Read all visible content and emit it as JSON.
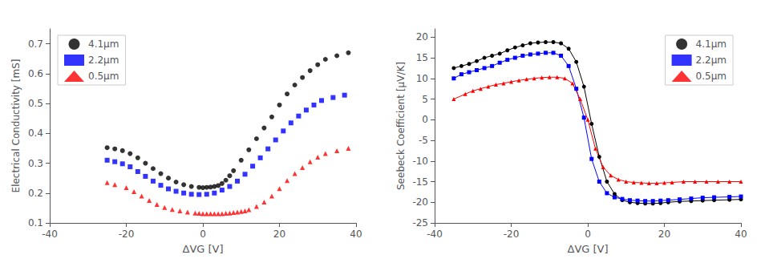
{
  "chart_data": [
    {
      "type": "scatter",
      "xlabel": "ΔVG [V]",
      "ylabel": "Electrical Conductivity [mS]",
      "xlim": [
        -40,
        40
      ],
      "ylim": [
        0.1,
        0.75
      ],
      "xticks": [
        -40,
        -20,
        0,
        20,
        40
      ],
      "yticks": [
        0.1,
        0.2,
        0.3,
        0.4,
        0.5,
        0.6,
        0.7
      ],
      "grid": false,
      "legend": "upper left",
      "series": [
        {
          "name": "4.1μm",
          "color": "#000000",
          "marker": "circle",
          "x": [
            -25,
            -23,
            -21,
            -19,
            -17,
            -15,
            -13,
            -11,
            -9,
            -7,
            -5,
            -3,
            -1,
            0,
            1,
            2,
            3,
            4,
            5,
            6,
            7,
            8,
            10,
            12,
            14,
            16,
            18,
            20,
            22,
            24,
            26,
            28,
            30,
            32,
            35,
            38
          ],
          "values": [
            0.352,
            0.348,
            0.342,
            0.332,
            0.318,
            0.3,
            0.282,
            0.265,
            0.25,
            0.237,
            0.228,
            0.222,
            0.219,
            0.218,
            0.219,
            0.22,
            0.222,
            0.225,
            0.232,
            0.243,
            0.258,
            0.275,
            0.31,
            0.345,
            0.382,
            0.418,
            0.455,
            0.495,
            0.532,
            0.562,
            0.587,
            0.61,
            0.63,
            0.648,
            0.66,
            0.67
          ]
        },
        {
          "name": "2.2μm",
          "color": "#0000FF",
          "marker": "square",
          "x": [
            -25,
            -23,
            -21,
            -19,
            -17,
            -15,
            -13,
            -11,
            -9,
            -7,
            -5,
            -3,
            -1,
            1,
            3,
            5,
            7,
            9,
            11,
            13,
            15,
            17,
            19,
            21,
            23,
            25,
            27,
            29,
            31,
            34,
            37
          ],
          "values": [
            0.31,
            0.305,
            0.298,
            0.288,
            0.272,
            0.256,
            0.24,
            0.226,
            0.214,
            0.206,
            0.2,
            0.196,
            0.195,
            0.196,
            0.2,
            0.21,
            0.222,
            0.24,
            0.263,
            0.29,
            0.318,
            0.348,
            0.378,
            0.408,
            0.435,
            0.458,
            0.478,
            0.495,
            0.51,
            0.52,
            0.528
          ]
        },
        {
          "name": "0.5μm",
          "color": "#FF0000",
          "marker": "triangle",
          "x": [
            -25,
            -23,
            -20,
            -18,
            -16,
            -14,
            -12,
            -10,
            -8,
            -6,
            -4,
            -2,
            -1,
            0,
            1,
            2,
            3,
            4,
            5,
            6,
            7,
            8,
            9,
            10,
            11,
            12,
            14,
            16,
            18,
            20,
            22,
            24,
            26,
            28,
            30,
            32,
            35,
            38
          ],
          "values": [
            0.235,
            0.228,
            0.218,
            0.205,
            0.19,
            0.175,
            0.162,
            0.152,
            0.145,
            0.14,
            0.136,
            0.133,
            0.132,
            0.131,
            0.131,
            0.131,
            0.131,
            0.131,
            0.131,
            0.132,
            0.133,
            0.135,
            0.136,
            0.138,
            0.14,
            0.144,
            0.155,
            0.17,
            0.19,
            0.215,
            0.242,
            0.265,
            0.285,
            0.305,
            0.32,
            0.332,
            0.342,
            0.35
          ]
        }
      ]
    },
    {
      "type": "line",
      "xlabel": "ΔVG [V]",
      "ylabel": "Seebeck Coefficient [μV/K]",
      "xlim": [
        -40,
        40
      ],
      "ylim": [
        -25,
        22
      ],
      "xticks": [
        -40,
        -20,
        0,
        20,
        40
      ],
      "yticks": [
        -25,
        -20,
        -15,
        -10,
        -5,
        0,
        5,
        10,
        15,
        20
      ],
      "grid": false,
      "legend": "upper right",
      "series": [
        {
          "name": "4.1μm",
          "color": "#000000",
          "marker": "circle",
          "line_style": "solid",
          "x": [
            -35,
            -33,
            -31,
            -29,
            -27,
            -25,
            -23,
            -21,
            -19,
            -17,
            -15,
            -13,
            -11,
            -9,
            -7,
            -5,
            -3,
            -1,
            1,
            3,
            5,
            7,
            9,
            11,
            13,
            15,
            17,
            19,
            21,
            24,
            27,
            30,
            33,
            37,
            40
          ],
          "values": [
            12.5,
            13.0,
            13.5,
            14.2,
            15.0,
            15.5,
            16.0,
            16.8,
            17.5,
            18.0,
            18.5,
            18.7,
            18.8,
            18.8,
            18.5,
            17.2,
            14.0,
            8.0,
            -1.0,
            -9.0,
            -15.0,
            -18.0,
            -19.5,
            -20.0,
            -20.2,
            -20.3,
            -20.3,
            -20.2,
            -20.0,
            -19.8,
            -19.7,
            -19.6,
            -19.5,
            -19.4,
            -19.3
          ]
        },
        {
          "name": "2.2μm",
          "color": "#0000FF",
          "marker": "square",
          "line_style": "solid",
          "x": [
            -35,
            -33,
            -31,
            -29,
            -27,
            -25,
            -23,
            -21,
            -19,
            -17,
            -15,
            -13,
            -11,
            -9,
            -7,
            -5,
            -3,
            -1,
            1,
            3,
            5,
            7,
            9,
            11,
            13,
            15,
            17,
            19,
            21,
            24,
            27,
            30,
            33,
            37,
            40
          ],
          "values": [
            10.0,
            11.0,
            11.5,
            12.0,
            12.5,
            13.0,
            13.8,
            14.5,
            15.0,
            15.5,
            15.8,
            16.0,
            16.2,
            16.2,
            15.5,
            13.0,
            7.5,
            0.5,
            -9.5,
            -15.0,
            -17.8,
            -18.8,
            -19.2,
            -19.5,
            -19.6,
            -19.7,
            -19.7,
            -19.6,
            -19.5,
            -19.3,
            -19.1,
            -18.9,
            -18.8,
            -18.7,
            -18.6
          ]
        },
        {
          "name": "0.5μm",
          "color": "#FF0000",
          "marker": "triangle",
          "line_style": "solid",
          "x": [
            -35,
            -32,
            -30,
            -28,
            -26,
            -24,
            -22,
            -20,
            -18,
            -16,
            -14,
            -12,
            -10,
            -8,
            -6,
            -4,
            -2,
            0,
            2,
            4,
            6,
            8,
            10,
            12,
            14,
            16,
            18,
            20,
            22,
            25,
            28,
            31,
            34,
            37,
            40
          ],
          "values": [
            5.0,
            6.2,
            7.0,
            7.5,
            8.0,
            8.5,
            8.8,
            9.2,
            9.5,
            9.8,
            10.0,
            10.2,
            10.3,
            10.3,
            10.0,
            8.8,
            5.0,
            0.0,
            -7.0,
            -11.5,
            -13.5,
            -14.5,
            -15.0,
            -15.2,
            -15.3,
            -15.4,
            -15.4,
            -15.3,
            -15.2,
            -15.0,
            -15.0,
            -15.0,
            -15.0,
            -15.0,
            -15.0
          ]
        }
      ]
    }
  ]
}
